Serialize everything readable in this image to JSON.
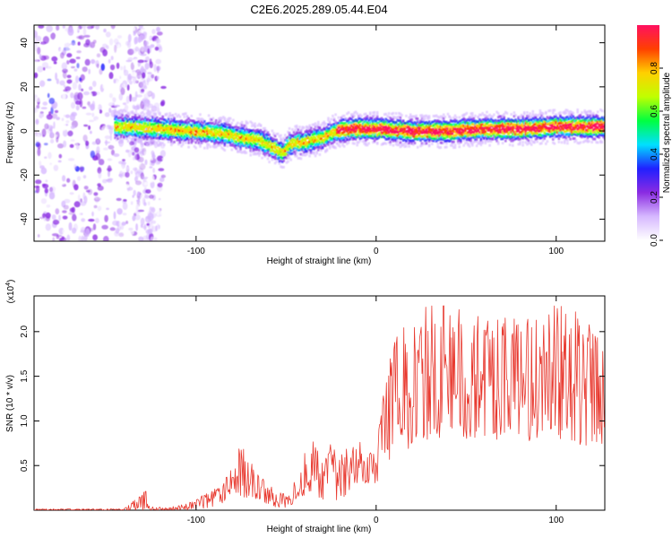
{
  "figure": {
    "title": "C2E6.2025.289.05.44.E04"
  },
  "chart_data": [
    {
      "type": "heatmap",
      "title": "",
      "xlabel": "Height of straight line (km)",
      "ylabel": "Frequency (Hz)",
      "xlim": [
        -190,
        127
      ],
      "ylim": [
        -50,
        48
      ],
      "xticks": [
        -100,
        0,
        100
      ],
      "xtick_labels": [
        "-100",
        "0",
        "100"
      ],
      "yticks": [
        -40,
        -20,
        0,
        20,
        40
      ],
      "ytick_labels": [
        "-40",
        "-20",
        "0",
        "20",
        "40"
      ],
      "colorbar": {
        "label": "Normalized spectral amplitude",
        "range": [
          0,
          1
        ],
        "ticks": [
          0.0,
          0.2,
          0.4,
          0.6,
          0.8
        ],
        "tick_labels": [
          "0.0",
          "0.2",
          "0.4",
          "0.6",
          "0.8"
        ],
        "colors": [
          "#ffffff",
          "#d6b8ff",
          "#8a2be2",
          "#2020ff",
          "#00e0ff",
          "#00ff40",
          "#c0ff00",
          "#ffd000",
          "#ff4000",
          "#ff1060"
        ]
      },
      "ridge": {
        "x": [
          -140,
          -120,
          -100,
          -85,
          -75,
          -65,
          -58,
          -52,
          -48,
          -44,
          -40,
          -30,
          -22,
          -15,
          -5,
          0,
          20,
          40,
          60,
          80,
          100,
          127
        ],
        "y": [
          2,
          1,
          0,
          -1,
          -3,
          -4,
          -7,
          -10,
          -6,
          -5,
          -5,
          -3,
          0,
          1,
          1,
          1,
          0,
          0,
          1,
          1,
          2,
          2
        ]
      }
    },
    {
      "type": "line",
      "title": "",
      "xlabel": "Height of straight line (km)",
      "ylabel": "SNR (10 * v/v)",
      "multiplier_label": "(x10",
      "multiplier_exp": "4",
      "xlim": [
        -190,
        127
      ],
      "ylim": [
        0,
        24000
      ],
      "xticks": [
        -100,
        0,
        100
      ],
      "xtick_labels": [
        "-100",
        "0",
        "100"
      ],
      "yticks": [
        5000,
        10000,
        15000,
        20000
      ],
      "ytick_labels": [
        "0.5",
        "1.0",
        "1.5",
        "2.0"
      ],
      "series": [
        {
          "name": "SNR",
          "color": "#e8392f",
          "envelope": {
            "x": [
              -190,
              -140,
              -128,
              -126,
              -115,
              -105,
              -95,
              -85,
              -75,
              -70,
              -65,
              -60,
              -55,
              -48,
              -42,
              -35,
              -30,
              -25,
              -20,
              -15,
              -10,
              -5,
              0,
              5,
              10,
              20,
              30,
              40,
              50,
              60,
              70,
              80,
              90,
              100,
              110,
              120,
              127
            ],
            "low": [
              0,
              0,
              0,
              0,
              0,
              0,
              200,
              600,
              1500,
              1200,
              1200,
              600,
              300,
              300,
              1200,
              2000,
              1000,
              1200,
              800,
              2000,
              3000,
              3000,
              3000,
              5000,
              6000,
              7000,
              8000,
              8000,
              8000,
              7500,
              8000,
              7500,
              8000,
              8000,
              7500,
              7000,
              7000
            ],
            "high": [
              150,
              150,
              2300,
              400,
              300,
              800,
              1800,
              3000,
              7500,
              5500,
              4000,
              3000,
              2200,
              1800,
              5500,
              8500,
              5500,
              7500,
              6500,
              7000,
              8000,
              6500,
              7000,
              16000,
              19000,
              22000,
              23500,
              23500,
              22500,
              21500,
              22500,
              22000,
              22500,
              23000,
              22500,
              22000,
              19000
            ]
          }
        }
      ]
    }
  ]
}
